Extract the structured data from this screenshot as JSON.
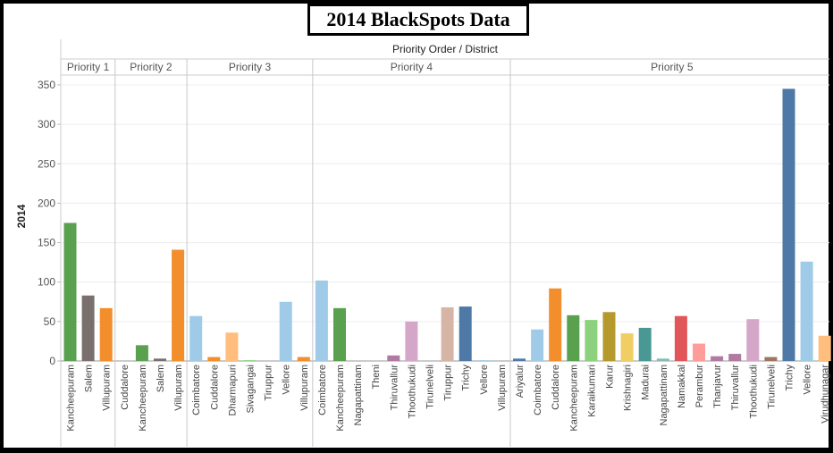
{
  "chart_data": {
    "type": "bar",
    "title": "2014 BlackSpots Data",
    "header": "Priority Order / District",
    "ylabel": "2014",
    "ylim": [
      0,
      350
    ],
    "yticks": [
      0,
      50,
      100,
      150,
      200,
      250,
      300,
      350
    ],
    "grid": true,
    "groups": [
      {
        "name": "Priority 1",
        "categories": [
          "Kancheepuram",
          "Salem",
          "Villupuram"
        ],
        "values": [
          175,
          83,
          67
        ],
        "colors": [
          "#59a14f",
          "#79706e",
          "#f28e2b"
        ]
      },
      {
        "name": "Priority 2",
        "categories": [
          "Cuddalore",
          "Kancheepuram",
          "Salem",
          "Villupuram"
        ],
        "values": [
          0,
          20,
          3,
          141
        ],
        "colors": [
          "#f28e2b",
          "#59a14f",
          "#79706e",
          "#f28e2b"
        ]
      },
      {
        "name": "Priority 3",
        "categories": [
          "Coimbatore",
          "Cuddalore",
          "Dharmapuri",
          "Sivagangai",
          "Tiruppur",
          "Vellore",
          "Villupuram"
        ],
        "values": [
          57,
          5,
          36,
          1,
          0,
          75,
          5
        ],
        "colors": [
          "#a0cbe8",
          "#f28e2b",
          "#ffbe7d",
          "#8cd17d",
          "#d4a6c8",
          "#a0cbe8",
          "#f28e2b"
        ]
      },
      {
        "name": "Priority 4",
        "categories": [
          "Coimbatore",
          "Kancheepuram",
          "Nagapattinam",
          "Theni",
          "Thiruvallur",
          "Thoothukudi",
          "Tirunelveli",
          "Tiruppur",
          "Trichy",
          "Vellore",
          "Villupuram"
        ],
        "values": [
          102,
          67,
          0,
          0,
          7,
          50,
          0,
          68,
          69,
          1,
          0
        ],
        "colors": [
          "#a0cbe8",
          "#59a14f",
          "#86bcb6",
          "#9d7660",
          "#b07aa1",
          "#d4a6c8",
          "#9d7660",
          "#d7b5a6",
          "#4e79a7",
          "#a0cbe8",
          "#f28e2b"
        ]
      },
      {
        "name": "Priority 5",
        "categories": [
          "Ariyalur",
          "Coimbatore",
          "Cuddalore",
          "Kancheepuram",
          "Karaikumari",
          "Karur",
          "Krishnagiri",
          "Madurai",
          "Nagapattinam",
          "Namakkal",
          "Perambur",
          "Thanjavur",
          "Thiruvallur",
          "Thoothukudi",
          "Tirunelveli",
          "Trichy",
          "Vellore",
          "Virudhunagar"
        ],
        "values": [
          3,
          40,
          92,
          58,
          52,
          62,
          35,
          42,
          3,
          57,
          22,
          6,
          9,
          53,
          5,
          345,
          126,
          32
        ],
        "colors": [
          "#4e79a7",
          "#a0cbe8",
          "#f28e2b",
          "#59a14f",
          "#8cd17d",
          "#b6992d",
          "#f1ce63",
          "#499894",
          "#86bcb6",
          "#e15759",
          "#ff9d9a",
          "#b07aa1",
          "#b07aa1",
          "#d4a6c8",
          "#9d7660",
          "#4e79a7",
          "#a0cbe8",
          "#ffbe7d"
        ]
      }
    ]
  }
}
